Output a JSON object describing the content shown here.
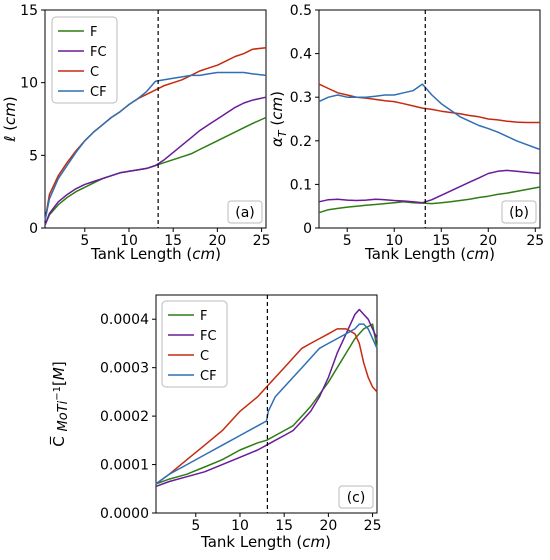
{
  "colors": {
    "F": "#2e7d14",
    "FC": "#6a1b9a",
    "C": "#c62a0e",
    "CF": "#2f6fb4"
  },
  "chart_data": [
    {
      "type": "line",
      "panel_label": "(a)",
      "xlabel": "Tank Length (cm)",
      "ylabel": "ℓ (cm)",
      "xlim": [
        0.5,
        25.5
      ],
      "ylim": [
        0,
        15
      ],
      "xticks": [
        5,
        10,
        15,
        20,
        25
      ],
      "yticks": [
        0,
        5,
        10,
        15
      ],
      "vline_x": 13.3,
      "legend": [
        "F",
        "FC",
        "C",
        "CF"
      ],
      "legend_position": "top-left",
      "series": [
        {
          "name": "F",
          "x": [
            0.5,
            1,
            2,
            3,
            4,
            5,
            6,
            7,
            8,
            9,
            10,
            11,
            12,
            13,
            14,
            15,
            16,
            17,
            18,
            19,
            20,
            21,
            22,
            23,
            24,
            25.5
          ],
          "y": [
            0.2,
            0.9,
            1.6,
            2.1,
            2.5,
            2.8,
            3.1,
            3.4,
            3.6,
            3.8,
            3.9,
            4.0,
            4.1,
            4.3,
            4.5,
            4.7,
            4.9,
            5.1,
            5.4,
            5.7,
            6.0,
            6.3,
            6.6,
            6.9,
            7.2,
            7.6
          ]
        },
        {
          "name": "FC",
          "x": [
            0.5,
            1,
            2,
            3,
            4,
            5,
            6,
            7,
            8,
            9,
            10,
            11,
            12,
            13,
            14,
            15,
            16,
            17,
            18,
            19,
            20,
            21,
            22,
            23,
            24,
            25.5
          ],
          "y": [
            0.2,
            1.0,
            1.8,
            2.3,
            2.7,
            3.0,
            3.2,
            3.4,
            3.6,
            3.8,
            3.9,
            4.0,
            4.1,
            4.3,
            4.7,
            5.2,
            5.7,
            6.2,
            6.7,
            7.1,
            7.5,
            7.9,
            8.3,
            8.6,
            8.8,
            9.0
          ]
        },
        {
          "name": "C",
          "x": [
            0.5,
            1,
            2,
            3,
            4,
            5,
            6,
            7,
            8,
            9,
            10,
            11,
            12,
            13,
            14,
            15,
            16,
            17,
            18,
            19,
            20,
            21,
            22,
            23,
            24,
            25.5
          ],
          "y": [
            0.5,
            2.3,
            3.6,
            4.5,
            5.3,
            6.0,
            6.6,
            7.1,
            7.6,
            8.0,
            8.5,
            8.9,
            9.2,
            9.5,
            9.8,
            10.0,
            10.2,
            10.5,
            10.8,
            11.0,
            11.2,
            11.5,
            11.8,
            12.0,
            12.3,
            12.4
          ]
        },
        {
          "name": "CF",
          "x": [
            0.5,
            1,
            2,
            3,
            4,
            5,
            6,
            7,
            8,
            9,
            10,
            11,
            12,
            13,
            14,
            15,
            16,
            17,
            18,
            19,
            20,
            21,
            22,
            23,
            24,
            25.5
          ],
          "y": [
            0.5,
            2.0,
            3.4,
            4.3,
            5.2,
            6.0,
            6.6,
            7.1,
            7.6,
            8.0,
            8.5,
            8.9,
            9.4,
            10.1,
            10.2,
            10.3,
            10.4,
            10.5,
            10.5,
            10.6,
            10.7,
            10.7,
            10.7,
            10.7,
            10.6,
            10.5
          ]
        }
      ]
    },
    {
      "type": "line",
      "panel_label": "(b)",
      "xlabel": "Tank Length (cm)",
      "ylabel": "α_T (cm)",
      "xlim": [
        2,
        25.5
      ],
      "ylim": [
        0,
        0.5
      ],
      "xticks": [
        5,
        10,
        15,
        20,
        25
      ],
      "yticks": [
        0.0,
        0.1,
        0.2,
        0.3,
        0.4,
        0.5
      ],
      "vline_x": 13.3,
      "series": [
        {
          "name": "F",
          "x": [
            2,
            3,
            4,
            5,
            6,
            7,
            8,
            9,
            10,
            11,
            12,
            13,
            14,
            15,
            16,
            17,
            18,
            19,
            20,
            21,
            22,
            23,
            24,
            25.5
          ],
          "y": [
            0.035,
            0.042,
            0.045,
            0.048,
            0.05,
            0.052,
            0.054,
            0.056,
            0.058,
            0.06,
            0.058,
            0.057,
            0.056,
            0.058,
            0.06,
            0.063,
            0.066,
            0.07,
            0.073,
            0.077,
            0.08,
            0.084,
            0.088,
            0.094
          ]
        },
        {
          "name": "FC",
          "x": [
            2,
            3,
            4,
            5,
            6,
            7,
            8,
            9,
            10,
            11,
            12,
            13,
            14,
            15,
            16,
            17,
            18,
            19,
            20,
            21,
            22,
            23,
            24,
            25.5
          ],
          "y": [
            0.06,
            0.065,
            0.066,
            0.064,
            0.063,
            0.064,
            0.066,
            0.065,
            0.063,
            0.062,
            0.06,
            0.058,
            0.065,
            0.075,
            0.085,
            0.095,
            0.105,
            0.115,
            0.125,
            0.13,
            0.132,
            0.13,
            0.128,
            0.125
          ]
        },
        {
          "name": "C",
          "x": [
            2,
            3,
            4,
            5,
            6,
            7,
            8,
            9,
            10,
            11,
            12,
            13,
            14,
            15,
            16,
            17,
            18,
            19,
            20,
            21,
            22,
            23,
            24,
            25.5
          ],
          "y": [
            0.33,
            0.32,
            0.31,
            0.305,
            0.3,
            0.298,
            0.295,
            0.292,
            0.29,
            0.285,
            0.28,
            0.275,
            0.272,
            0.268,
            0.265,
            0.262,
            0.258,
            0.255,
            0.25,
            0.248,
            0.245,
            0.243,
            0.242,
            0.242
          ]
        },
        {
          "name": "CF",
          "x": [
            2,
            3,
            4,
            5,
            6,
            7,
            8,
            9,
            10,
            11,
            12,
            13,
            14,
            15,
            16,
            17,
            18,
            19,
            20,
            21,
            22,
            23,
            24,
            25.5
          ],
          "y": [
            0.29,
            0.3,
            0.305,
            0.3,
            0.3,
            0.3,
            0.302,
            0.305,
            0.305,
            0.31,
            0.315,
            0.33,
            0.305,
            0.285,
            0.27,
            0.255,
            0.245,
            0.235,
            0.228,
            0.22,
            0.21,
            0.2,
            0.192,
            0.18
          ]
        }
      ]
    },
    {
      "type": "line",
      "panel_label": "(c)",
      "xlabel": "Tank Length (cm)",
      "ylabel": "C̅ MoTi⁻¹ [M]",
      "xlim": [
        0.5,
        25.5
      ],
      "ylim": [
        0,
        0.00045
      ],
      "xticks": [
        5,
        10,
        15,
        20,
        25
      ],
      "yticks": [
        0.0,
        0.0001,
        0.0002,
        0.0003,
        0.0004
      ],
      "ytick_labels": [
        "0.0000",
        "0.0001",
        "0.0002",
        "0.0003",
        "0.0004"
      ],
      "vline_x": 13.1,
      "legend": [
        "F",
        "FC",
        "C",
        "CF"
      ],
      "legend_position": "top-left",
      "series": [
        {
          "name": "F",
          "x": [
            0.5,
            2,
            4,
            6,
            8,
            10,
            12,
            13,
            14,
            15,
            16,
            17,
            18,
            19,
            20,
            21,
            22,
            23,
            23.5,
            24,
            24.5,
            25,
            25.5
          ],
          "y": [
            6e-05,
            7e-05,
            8e-05,
            9.5e-05,
            0.00011,
            0.00013,
            0.000145,
            0.00015,
            0.00016,
            0.00017,
            0.00018,
            0.0002,
            0.00022,
            0.000245,
            0.00027,
            0.0003,
            0.00033,
            0.00036,
            0.00037,
            0.00038,
            0.000385,
            0.00039,
            0.00034
          ]
        },
        {
          "name": "FC",
          "x": [
            0.5,
            2,
            4,
            6,
            8,
            10,
            12,
            13,
            14,
            15,
            16,
            17,
            18,
            19,
            20,
            21,
            22,
            23,
            23.5,
            24,
            24.5,
            25,
            25.5
          ],
          "y": [
            5.5e-05,
            6.5e-05,
            7.5e-05,
            8.5e-05,
            0.0001,
            0.000115,
            0.00013,
            0.00014,
            0.00015,
            0.00016,
            0.00017,
            0.00019,
            0.00021,
            0.00024,
            0.00028,
            0.00033,
            0.00037,
            0.00041,
            0.00042,
            0.00041,
            0.0004,
            0.00038,
            0.00036
          ]
        },
        {
          "name": "C",
          "x": [
            0.5,
            2,
            4,
            6,
            8,
            10,
            12,
            13,
            14,
            15,
            16,
            17,
            18,
            19,
            20,
            21,
            22,
            23,
            23.5,
            24,
            24.5,
            25,
            25.5
          ],
          "y": [
            6e-05,
            8e-05,
            0.00011,
            0.00014,
            0.00017,
            0.00021,
            0.00024,
            0.00026,
            0.00028,
            0.0003,
            0.00032,
            0.00034,
            0.00035,
            0.00036,
            0.00037,
            0.00038,
            0.00038,
            0.00037,
            0.00035,
            0.00031,
            0.00028,
            0.00026,
            0.00025
          ]
        },
        {
          "name": "CF",
          "x": [
            0.5,
            2,
            4,
            6,
            8,
            10,
            12,
            13,
            13.2,
            14,
            15,
            16,
            17,
            18,
            19,
            20,
            21,
            22,
            23,
            23.5,
            24,
            24.5,
            25,
            25.5
          ],
          "y": [
            6e-05,
            8e-05,
            0.0001,
            0.00012,
            0.00014,
            0.00016,
            0.00018,
            0.00019,
            0.00021,
            0.00024,
            0.00026,
            0.00028,
            0.0003,
            0.00032,
            0.00034,
            0.00035,
            0.00036,
            0.00037,
            0.00038,
            0.00039,
            0.00039,
            0.00038,
            0.00036,
            0.00034
          ]
        }
      ]
    }
  ]
}
